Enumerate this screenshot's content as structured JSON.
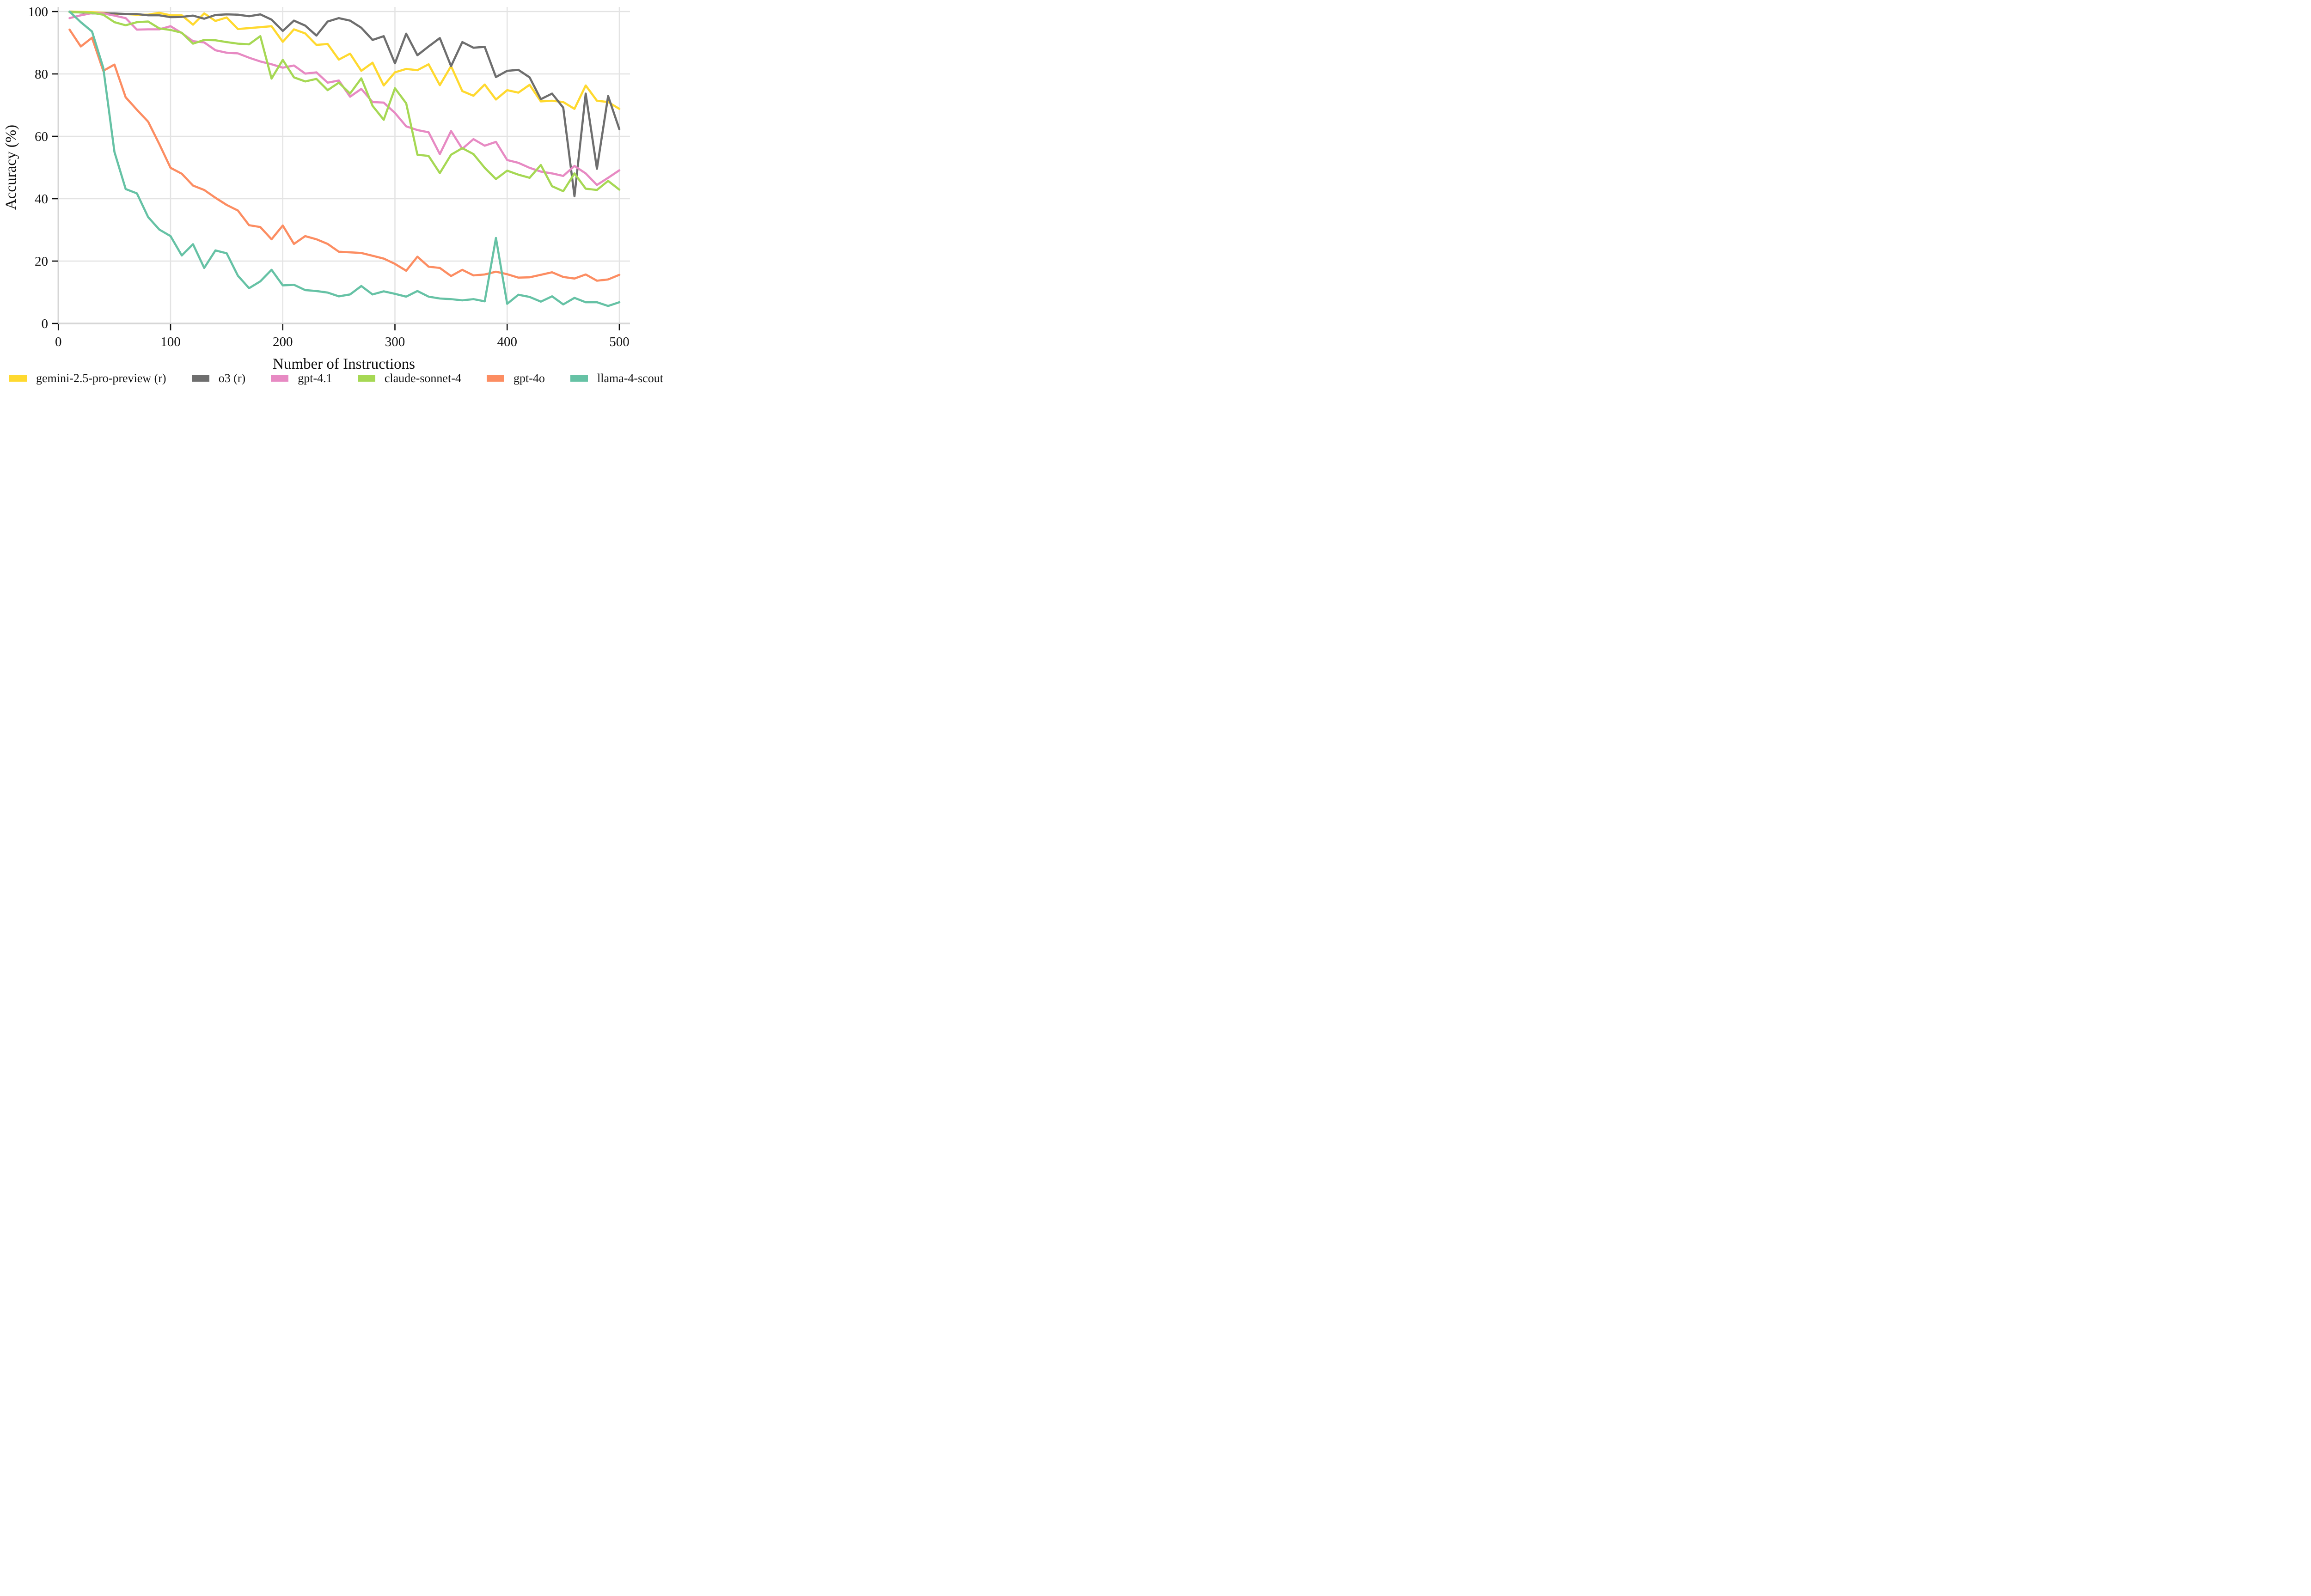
{
  "chart_data": {
    "type": "line",
    "title": "",
    "xlabel": "Number of Instructions",
    "ylabel": "Accuracy (%)",
    "xlim": [
      0,
      520
    ],
    "ylim": [
      0,
      104
    ],
    "x_ticks": [
      0,
      100,
      200,
      300,
      400,
      500
    ],
    "y_ticks": [
      0,
      20,
      40,
      60,
      80,
      100
    ],
    "grid": true,
    "legend_position": "bottom",
    "x": [
      10,
      20,
      30,
      40,
      50,
      60,
      70,
      80,
      90,
      100,
      110,
      120,
      130,
      140,
      150,
      160,
      170,
      180,
      190,
      200,
      210,
      220,
      230,
      240,
      250,
      260,
      270,
      280,
      290,
      300,
      310,
      320,
      330,
      340,
      350,
      360,
      370,
      380,
      390,
      400,
      410,
      420,
      430,
      440,
      450,
      460,
      470,
      480,
      490,
      500
    ],
    "series": [
      {
        "name": "gemini-2.5-pro-preview (r)",
        "color": "#FFD92F",
        "values": [
          100,
          99.9,
          99.8,
          99.6,
          99.3,
          99.2,
          99,
          99,
          99.6,
          98.8,
          98.8,
          95.8,
          99.4,
          97,
          98.1,
          94.4,
          94.7,
          95,
          95.3,
          90.3,
          94.3,
          93,
          89.3,
          89.6,
          84.6,
          86.5,
          81,
          83.6,
          76.3,
          80.5,
          81.6,
          81.2,
          83.1,
          76.4,
          82.5,
          74.5,
          73,
          76.6,
          71.8,
          74.8,
          74,
          76.5,
          71.2,
          71.4,
          71,
          68.8,
          76.3,
          71.4,
          71,
          68.8
        ]
      },
      {
        "name": "o3 (r)",
        "color": "#6E6E6E",
        "values": [
          99.9,
          99.7,
          99.4,
          99.4,
          99.4,
          99.2,
          99.2,
          98.8,
          98.8,
          98.2,
          98.3,
          98.7,
          97.7,
          98.9,
          99.1,
          99,
          98.5,
          99.1,
          97.4,
          93.8,
          97.1,
          95.5,
          92.3,
          96.8,
          97.9,
          97.1,
          94.8,
          90.9,
          92.1,
          83.4,
          92.9,
          86,
          88.8,
          91.5,
          82.5,
          90.2,
          88.4,
          88.7,
          79,
          81,
          81.3,
          78.9,
          71.9,
          73.7,
          69.2,
          40.8,
          73.7,
          49.6,
          72.9,
          62.3
        ]
      },
      {
        "name": "gpt-4.1",
        "color": "#E78AC3",
        "values": [
          97.9,
          98.8,
          99.5,
          99.4,
          98.7,
          97.9,
          94.2,
          94.3,
          94.3,
          95.3,
          93.1,
          90.5,
          90.1,
          87.6,
          86.8,
          86.6,
          85.2,
          84,
          83.1,
          82,
          82.7,
          80.1,
          80.5,
          77.2,
          77.9,
          72.7,
          75.2,
          71,
          70.8,
          67.5,
          63.2,
          62,
          61.3,
          54.3,
          61.7,
          56,
          59.1,
          57,
          58.2,
          52.4,
          51.5,
          49.9,
          48.7,
          48.1,
          47.3,
          50.5,
          48.1,
          44.4,
          46.7,
          49.1
        ]
      },
      {
        "name": "claude-sonnet-4",
        "color": "#A6D854",
        "values": [
          99.8,
          99.8,
          99.6,
          99,
          96.6,
          95.6,
          96.6,
          96.8,
          94.6,
          94.1,
          93.2,
          89.7,
          90.9,
          90.8,
          90.2,
          89.7,
          89.5,
          92.1,
          78.5,
          84.5,
          78.9,
          77.6,
          78.4,
          74.8,
          77.2,
          73.7,
          78.6,
          69.8,
          65.3,
          75.4,
          70.6,
          54.1,
          53.7,
          48.2,
          54.1,
          56.2,
          54.3,
          49.9,
          46.3,
          49,
          47.7,
          46.7,
          50.8,
          44,
          42.4,
          48.1,
          43.2,
          42.8,
          45.7,
          42.9
        ]
      },
      {
        "name": "gpt-4o",
        "color": "#FC8D62",
        "values": [
          94.2,
          88.8,
          91.6,
          81,
          83,
          72.5,
          68.5,
          64.7,
          57.5,
          49.9,
          48,
          44.2,
          42.8,
          40.3,
          38,
          36.2,
          31.5,
          30.9,
          27,
          31.4,
          25.5,
          28,
          27,
          25.5,
          23,
          22.8,
          22.6,
          21.7,
          20.8,
          19.1,
          16.9,
          21.4,
          18.2,
          17.8,
          15.2,
          17.2,
          15.4,
          15.7,
          16.6,
          15.8,
          14.7,
          14.8,
          15.6,
          16.4,
          14.9,
          14.4,
          15.7,
          13.7,
          14.1,
          15.6
        ]
      },
      {
        "name": "llama-4-scout",
        "color": "#66C2A5",
        "values": [
          100,
          96.6,
          93.6,
          82,
          55,
          43.1,
          41.7,
          34.1,
          30.1,
          28,
          21.8,
          25.4,
          17.8,
          23.4,
          22.5,
          15.3,
          11.3,
          13.5,
          17.2,
          12.2,
          12.4,
          10.7,
          10.4,
          9.9,
          8.7,
          9.3,
          12,
          9.3,
          10.3,
          9.5,
          8.6,
          10.4,
          8.6,
          8,
          7.8,
          7.4,
          7.8,
          7.1,
          27.4,
          6.3,
          9.2,
          8.5,
          7,
          8.7,
          6.1,
          8.2,
          6.8,
          6.8,
          5.6,
          6.8
        ]
      }
    ]
  },
  "styles": {
    "background": "#FFFFFF",
    "grid_color": "#E3E3E3",
    "spine_color": "#D6D6D6",
    "tick_color": "#111111",
    "text_color": "#111111"
  }
}
